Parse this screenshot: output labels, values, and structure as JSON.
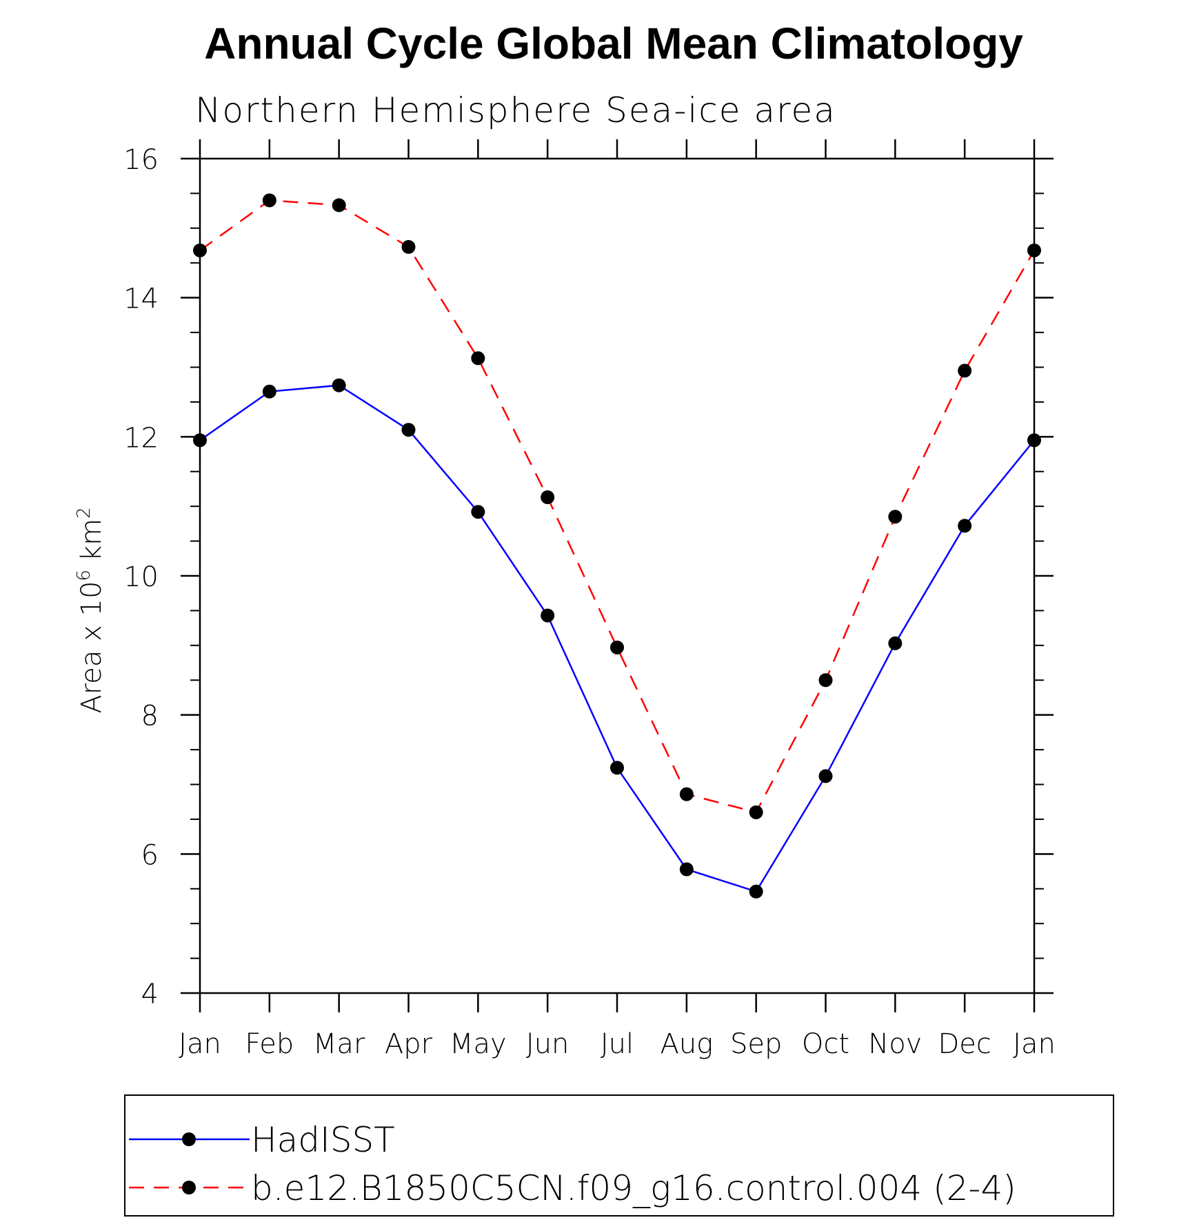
{
  "chart_data": {
    "type": "line",
    "title": "Annual Cycle Global Mean Climatology",
    "subtitle": "Northern Hemisphere Sea-ice area",
    "xlabel": "",
    "ylabel": "Area x 10",
    "ylabel_superscript_1": "6",
    "ylabel_unit": "km",
    "ylabel_superscript_2": "2",
    "categories": [
      "Jan",
      "Feb",
      "Mar",
      "Apr",
      "May",
      "Jun",
      "Jul",
      "Aug",
      "Sep",
      "Oct",
      "Nov",
      "Dec",
      "Jan"
    ],
    "ylim": [
      4,
      16
    ],
    "yticks": [
      4,
      6,
      8,
      10,
      12,
      14,
      16
    ],
    "grid": false,
    "legend_position": "bottom",
    "series": [
      {
        "name": "HadISST",
        "color": "#0000ff",
        "line_style": "solid",
        "marker": "filled-circle",
        "values": [
          11.95,
          12.65,
          12.74,
          12.1,
          10.92,
          9.43,
          7.24,
          5.78,
          5.46,
          7.12,
          9.03,
          10.72,
          11.95
        ]
      },
      {
        "name": "b.e12.B1850C5CN.f09_g16.control.004 (2-4)",
        "color": "#ff0000",
        "line_style": "dashed",
        "marker": "filled-circle",
        "values": [
          14.68,
          15.4,
          15.33,
          14.73,
          13.13,
          11.13,
          8.97,
          6.86,
          6.6,
          8.5,
          10.85,
          12.95,
          14.68
        ]
      }
    ]
  }
}
